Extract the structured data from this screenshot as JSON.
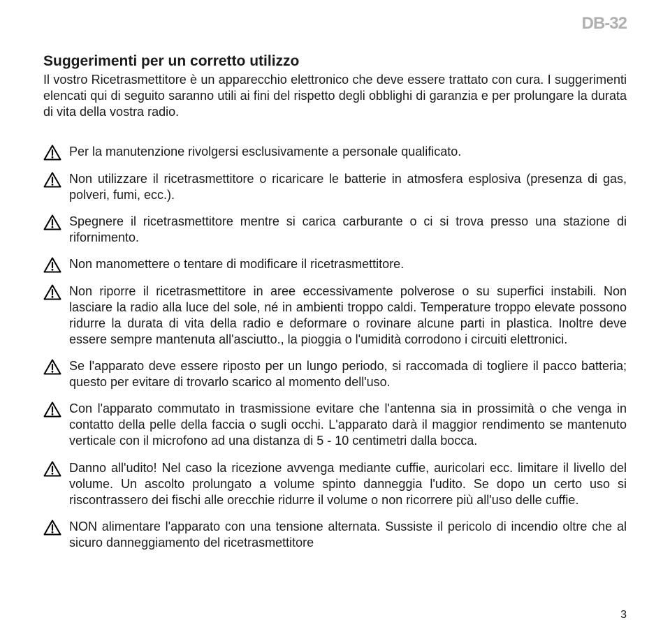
{
  "brand": "DB-32",
  "sectionTitle": "Suggerimenti per un corretto utilizzo",
  "intro": "Il vostro Ricetrasmettitore è un apparecchio elettronico che deve essere trattato con cura. I suggerimenti elencati qui di seguito saranno utili ai fini del rispetto degli obblighi di garanzia e per prolungare la durata di vita della vostra radio.",
  "warnings": [
    "Per la manutenzione rivolgersi esclusivamente a personale qualificato.",
    "Non utilizzare il ricetrasmettitore o ricaricare le batterie in atmosfera esplosiva (presenza di gas, polveri, fumi, ecc.).",
    "Spegnere il ricetrasmettitore mentre si carica carburante o ci si trova presso una stazione di rifornimento.",
    "Non manomettere o tentare di modificare il ricetrasmettitore.",
    "Non riporre il ricetrasmettitore in aree eccessivamente polverose o su superfici instabili. Non lasciare la radio alla luce del sole, né in ambienti troppo caldi. Temperature troppo elevate possono ridurre la durata di vita della radio e deformare o rovinare alcune parti in plastica. Inoltre deve essere sempre mantenuta all'asciutto., la pioggia o l'umidità corrodono i circuiti elettronici.",
    "Se l'apparato deve essere riposto per un lungo periodo, si raccomada di togliere il pacco batteria; questo per evitare di trovarlo scarico al momento dell'uso.",
    "Con l'apparato commutato in trasmissione evitare che l'antenna sia in prossimità o che venga in contatto della pelle della faccia o sugli occhi. L'apparato darà il maggior rendimento se mantenuto verticale con il microfono ad una distanza di 5 - 10 centimetri dalla bocca.",
    "Danno all'udito! Nel caso la ricezione avvenga mediante cuffie, auricolari ecc. limitare il livello del volume. Un ascolto prolungato a volume spinto danneggia l'udito. Se dopo un certo uso si riscontrassero dei fischi alle orecchie ridurre il volume o non ricorrere più all'uso delle cuffie.",
    "NON alimentare l'apparato con una tensione alternata. Sussiste il pericolo di incendio oltre che al sicuro danneggiamento del ricetrasmettitore"
  ],
  "pageNumber": "3",
  "colors": {
    "text": "#1a1a1a",
    "brand": "#b0b0b0",
    "background": "#ffffff",
    "iconStroke": "#000000"
  }
}
